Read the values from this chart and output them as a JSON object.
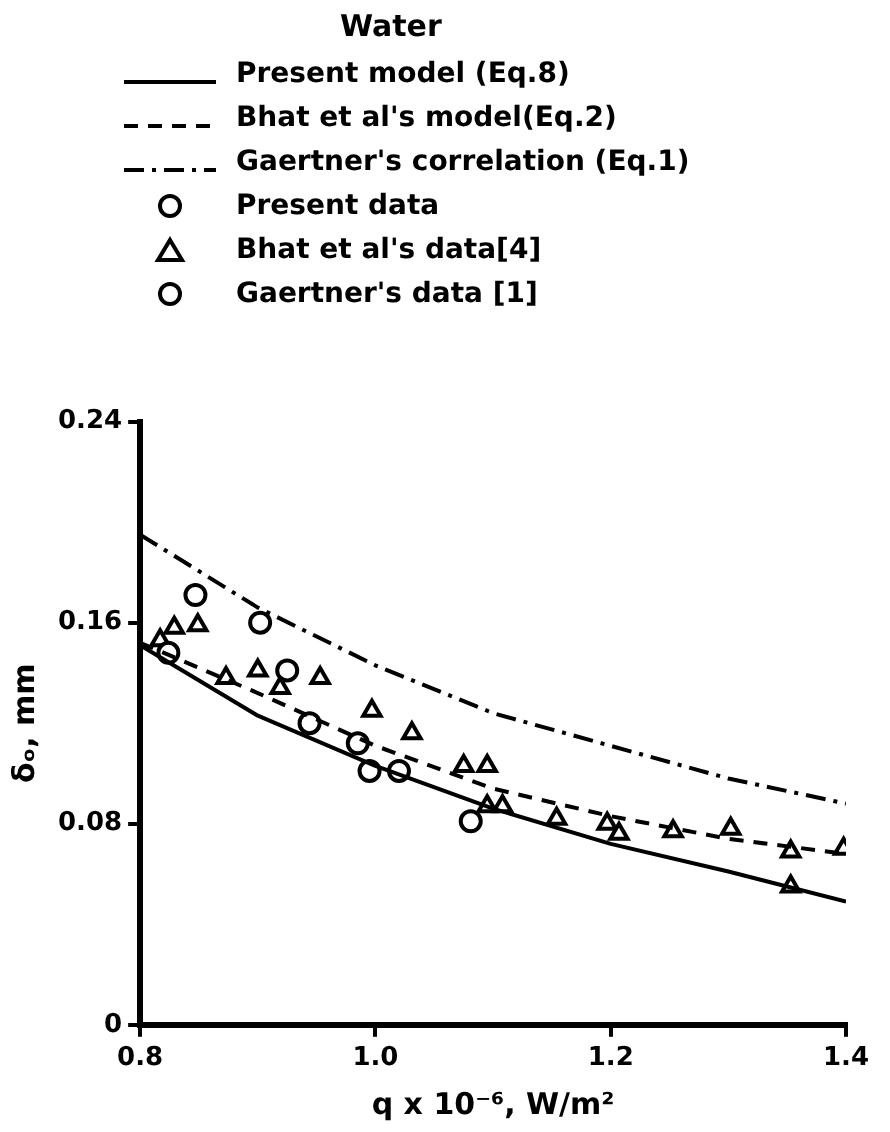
{
  "chart_data": {
    "type": "scatter",
    "title": "Water",
    "xlabel": "q x 10⁻⁶, W/m²",
    "ylabel": "δₒ, mm",
    "xlim": [
      0.8,
      1.4
    ],
    "xticks": [
      0.8,
      {
        "value": 1,
        "label": "1.0"
      },
      1.2,
      1.4
    ],
    "ylim": [
      0,
      0.24
    ],
    "yticks": [
      0,
      0.08,
      0.16,
      0.24
    ],
    "grid": false,
    "legend": "top",
    "series": [
      {
        "name": "Present model (Eq.8)",
        "type": "line",
        "line_style": "solid",
        "marker": "none",
        "color": "#000000",
        "x": [
          0.8,
          0.9,
          1.0,
          1.1,
          1.2,
          1.3,
          1.4
        ],
        "values": [
          0.151,
          0.123,
          0.103,
          0.086,
          0.072,
          0.061,
          0.049
        ]
      },
      {
        "name": "Bhat et al's model(Eq.2)",
        "type": "line",
        "line_style": "dashed",
        "marker": "none",
        "color": "#000000",
        "x": [
          0.8,
          0.9,
          1.0,
          1.1,
          1.2,
          1.3,
          1.4
        ],
        "values": [
          0.152,
          0.132,
          0.111,
          0.094,
          0.083,
          0.074,
          0.068
        ]
      },
      {
        "name": "Gaertner's correlation (Eq.1)",
        "type": "line",
        "line_style": "dashdot",
        "marker": "none",
        "color": "#000000",
        "x": [
          0.8,
          0.9,
          1.0,
          1.1,
          1.2,
          1.3,
          1.4
        ],
        "values": [
          0.195,
          0.166,
          0.143,
          0.124,
          0.111,
          0.098,
          0.088
        ]
      },
      {
        "name": "Present data",
        "marker": "circle",
        "color": "#000000",
        "x": [
          0.824,
          0.847,
          0.902,
          0.925,
          0.985,
          0.995,
          1.02,
          1.081
        ],
        "values": [
          0.148,
          0.171,
          0.16,
          0.141,
          0.112,
          0.101,
          0.101,
          0.081
        ]
      },
      {
        "name": "Bhat et al's data[4]",
        "marker": "triangle",
        "color": "#000000",
        "x": [
          0.817,
          0.829,
          0.849,
          0.873,
          0.9,
          0.919,
          0.953,
          0.997,
          1.031,
          1.075,
          1.095,
          1.095,
          1.108,
          1.154,
          1.197,
          1.207,
          1.253,
          1.302,
          1.353,
          1.353,
          1.398
        ],
        "values": [
          0.153,
          0.158,
          0.159,
          0.138,
          0.141,
          0.134,
          0.138,
          0.125,
          0.116,
          0.103,
          0.103,
          0.087,
          0.087,
          0.082,
          0.08,
          0.076,
          0.077,
          0.078,
          0.069,
          0.055,
          0.07
        ]
      },
      {
        "name": "Gaertner's data [1]",
        "marker": "circle",
        "color": "#000000",
        "x": [
          0.944
        ],
        "values": [
          0.12
        ]
      }
    ]
  }
}
